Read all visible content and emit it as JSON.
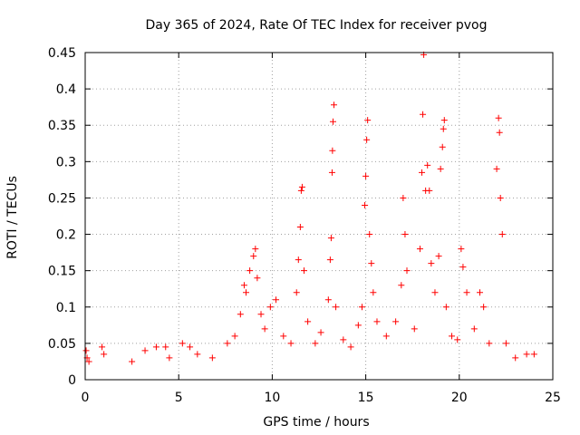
{
  "chart_data": {
    "type": "scatter",
    "title": "Day 365 of 2024, Rate Of TEC Index for receiver pvog",
    "xlabel": "GPS time / hours",
    "ylabel": "ROTI / TECUs",
    "xlim": [
      0,
      25
    ],
    "ylim": [
      0,
      0.45
    ],
    "xticks": [
      0,
      5,
      10,
      15,
      20,
      25
    ],
    "yticks": [
      0,
      0.05,
      0.1,
      0.15,
      0.2,
      0.25,
      0.3,
      0.35,
      0.4,
      0.45
    ],
    "xtick_labels": [
      "0",
      "5",
      "10",
      "15",
      "20",
      "25"
    ],
    "ytick_labels": [
      "0",
      "0.05",
      "0.1",
      "0.15",
      "0.2",
      "0.25",
      "0.3",
      "0.35",
      "0.4",
      "0.45"
    ],
    "grid": true,
    "marker": "+",
    "color": "#ff0000",
    "series": [
      {
        "name": "",
        "points": [
          [
            0.05,
            0.04
          ],
          [
            0.1,
            0.03
          ],
          [
            0.2,
            0.025
          ],
          [
            0.9,
            0.045
          ],
          [
            1.0,
            0.035
          ],
          [
            2.5,
            0.025
          ],
          [
            3.2,
            0.04
          ],
          [
            3.8,
            0.045
          ],
          [
            4.3,
            0.045
          ],
          [
            4.5,
            0.03
          ],
          [
            5.2,
            0.05
          ],
          [
            5.6,
            0.045
          ],
          [
            6.0,
            0.035
          ],
          [
            6.8,
            0.03
          ],
          [
            7.6,
            0.05
          ],
          [
            8.0,
            0.06
          ],
          [
            8.3,
            0.09
          ],
          [
            8.5,
            0.13
          ],
          [
            8.6,
            0.12
          ],
          [
            8.8,
            0.15
          ],
          [
            9.0,
            0.17
          ],
          [
            9.1,
            0.18
          ],
          [
            9.2,
            0.14
          ],
          [
            9.4,
            0.09
          ],
          [
            9.6,
            0.07
          ],
          [
            9.9,
            0.1
          ],
          [
            10.2,
            0.11
          ],
          [
            10.6,
            0.06
          ],
          [
            11.0,
            0.05
          ],
          [
            11.3,
            0.12
          ],
          [
            11.4,
            0.165
          ],
          [
            11.5,
            0.21
          ],
          [
            11.55,
            0.26
          ],
          [
            11.6,
            0.265
          ],
          [
            11.7,
            0.15
          ],
          [
            11.9,
            0.08
          ],
          [
            12.3,
            0.05
          ],
          [
            12.6,
            0.065
          ],
          [
            13.0,
            0.11
          ],
          [
            13.1,
            0.165
          ],
          [
            13.15,
            0.195
          ],
          [
            13.2,
            0.285
          ],
          [
            13.22,
            0.315
          ],
          [
            13.25,
            0.355
          ],
          [
            13.3,
            0.378
          ],
          [
            13.4,
            0.1
          ],
          [
            13.8,
            0.055
          ],
          [
            14.2,
            0.045
          ],
          [
            14.6,
            0.075
          ],
          [
            14.8,
            0.1
          ],
          [
            14.95,
            0.24
          ],
          [
            15.0,
            0.28
          ],
          [
            15.05,
            0.33
          ],
          [
            15.1,
            0.357
          ],
          [
            15.2,
            0.2
          ],
          [
            15.3,
            0.16
          ],
          [
            15.4,
            0.12
          ],
          [
            15.6,
            0.08
          ],
          [
            16.1,
            0.06
          ],
          [
            16.6,
            0.08
          ],
          [
            16.9,
            0.13
          ],
          [
            17.0,
            0.25
          ],
          [
            17.1,
            0.2
          ],
          [
            17.2,
            0.15
          ],
          [
            17.6,
            0.07
          ],
          [
            17.9,
            0.18
          ],
          [
            18.0,
            0.285
          ],
          [
            18.05,
            0.365
          ],
          [
            18.1,
            0.447
          ],
          [
            18.2,
            0.26
          ],
          [
            18.3,
            0.295
          ],
          [
            18.4,
            0.26
          ],
          [
            18.5,
            0.16
          ],
          [
            18.7,
            0.12
          ],
          [
            18.9,
            0.17
          ],
          [
            19.0,
            0.29
          ],
          [
            19.1,
            0.32
          ],
          [
            19.15,
            0.345
          ],
          [
            19.2,
            0.357
          ],
          [
            19.3,
            0.1
          ],
          [
            19.6,
            0.06
          ],
          [
            19.9,
            0.055
          ],
          [
            20.1,
            0.18
          ],
          [
            20.2,
            0.155
          ],
          [
            20.4,
            0.12
          ],
          [
            20.8,
            0.07
          ],
          [
            21.1,
            0.12
          ],
          [
            21.3,
            0.1
          ],
          [
            21.6,
            0.05
          ],
          [
            22.0,
            0.29
          ],
          [
            22.1,
            0.36
          ],
          [
            22.15,
            0.34
          ],
          [
            22.2,
            0.25
          ],
          [
            22.3,
            0.2
          ],
          [
            22.5,
            0.05
          ],
          [
            23.0,
            0.03
          ],
          [
            23.6,
            0.035
          ],
          [
            24.0,
            0.035
          ]
        ]
      }
    ]
  }
}
